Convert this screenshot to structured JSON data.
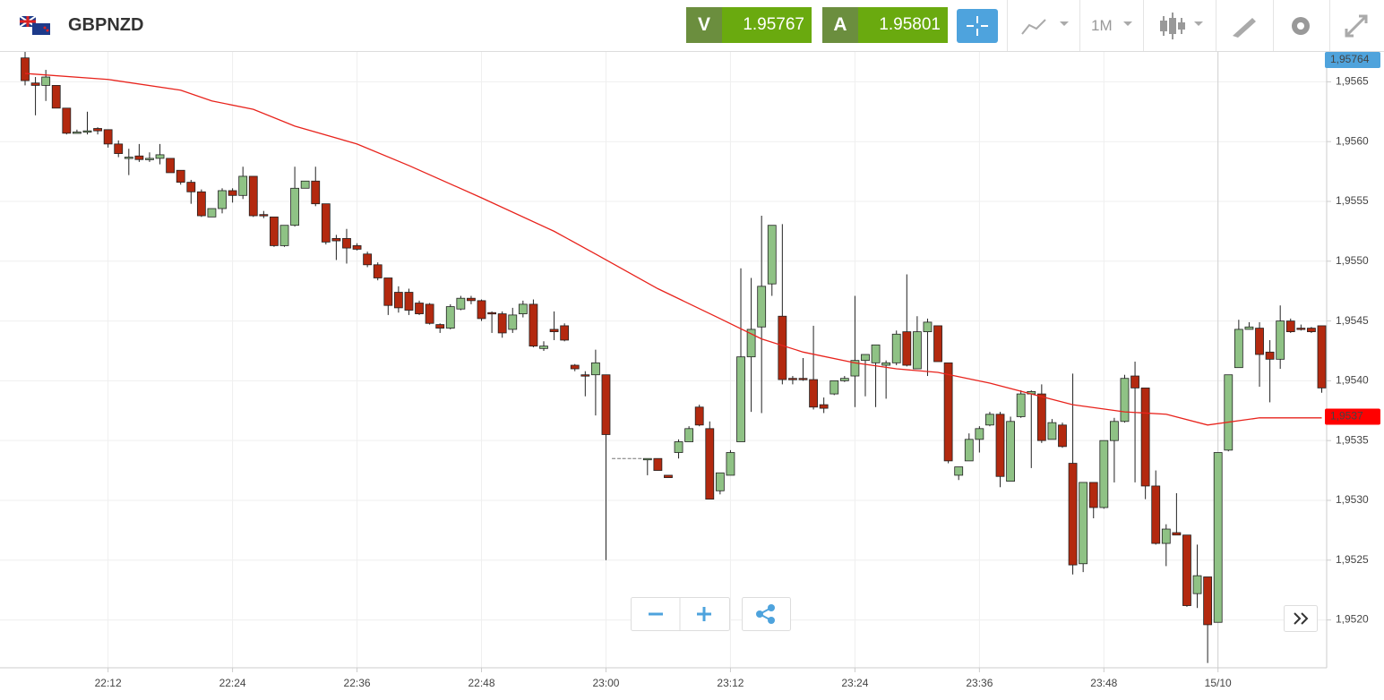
{
  "header": {
    "symbol": "GBPNZD",
    "sell": {
      "label": "V",
      "price": "1.95767"
    },
    "buy": {
      "label": "A",
      "price": "1.95801"
    },
    "timeframe": "1M"
  },
  "chart_data": {
    "type": "candlestick",
    "categories": [
      null,
      null,
      null,
      null,
      null,
      null,
      null,
      null,
      "22:12",
      null,
      null,
      null,
      null,
      null,
      null,
      null,
      null,
      null,
      null,
      null,
      "22:24",
      null,
      null,
      null,
      null,
      null,
      null,
      null,
      null,
      null,
      null,
      null,
      "22:36",
      null,
      null,
      null,
      null,
      null,
      null,
      null,
      null,
      null,
      null,
      null,
      "22:48",
      null,
      null,
      null,
      null,
      null,
      null,
      null,
      null,
      null,
      null,
      null,
      "23:00",
      null,
      null,
      null,
      null,
      null,
      null,
      null,
      null,
      null,
      null,
      null,
      "23:12",
      null,
      null,
      null,
      null,
      null,
      null,
      null,
      null,
      null,
      null,
      null,
      "23:24",
      null,
      null,
      null,
      null,
      null,
      null,
      null,
      null,
      null,
      null,
      null,
      "23:36",
      null,
      null,
      null,
      null,
      null,
      null,
      null,
      null,
      null,
      null,
      null,
      "23:48",
      null,
      null,
      null,
      null,
      null,
      null,
      null,
      null,
      null,
      null,
      "15/10",
      null,
      null,
      null,
      null,
      null,
      null,
      null,
      null,
      null,
      null
    ],
    "candles": [
      [
        1.9567,
        1.95675,
        1.95647,
        1.95651
      ],
      [
        1.95649,
        1.95654,
        1.95622,
        1.95647
      ],
      [
        1.95647,
        1.9566,
        1.95634,
        1.95654
      ],
      [
        1.95647,
        1.95647,
        1.95628,
        1.95628
      ],
      [
        1.95628,
        1.95628,
        1.95606,
        1.95607
      ],
      [
        1.95608,
        1.9561,
        1.95607,
        1.95608
      ],
      [
        1.95609,
        1.95625,
        1.95606,
        1.95609
      ],
      [
        1.95611,
        1.95612,
        1.95606,
        1.95609
      ],
      [
        1.9561,
        1.9561,
        1.95595,
        1.95598
      ],
      [
        1.95598,
        1.95601,
        1.95587,
        1.9559
      ],
      [
        1.95587,
        1.95594,
        1.95572,
        1.95587
      ],
      [
        1.95588,
        1.95598,
        1.95583,
        1.95585
      ],
      [
        1.95586,
        1.95591,
        1.95583,
        1.95586
      ],
      [
        1.95586,
        1.95598,
        1.95581,
        1.95589
      ],
      [
        1.95586,
        1.95586,
        1.95574,
        1.95574
      ],
      [
        1.95576,
        1.95576,
        1.95564,
        1.95566
      ],
      [
        1.95566,
        1.95568,
        1.95548,
        1.95558
      ],
      [
        1.95558,
        1.9556,
        1.95537,
        1.95538
      ],
      [
        1.95537,
        1.95544,
        1.95537,
        1.95544
      ],
      [
        1.95544,
        1.95561,
        1.9554,
        1.95559
      ],
      [
        1.95559,
        1.95561,
        1.95549,
        1.95555
      ],
      [
        1.95555,
        1.95579,
        1.95552,
        1.95571
      ],
      [
        1.95571,
        1.95571,
        1.95537,
        1.95538
      ],
      [
        1.95539,
        1.95542,
        1.95536,
        1.95538
      ],
      [
        1.95537,
        1.95537,
        1.95512,
        1.95513
      ],
      [
        1.95513,
        1.9553,
        1.95512,
        1.9553
      ],
      [
        1.9553,
        1.95579,
        1.95529,
        1.95561
      ],
      [
        1.95561,
        1.95567,
        1.95561,
        1.95567
      ],
      [
        1.95567,
        1.95579,
        1.95546,
        1.95548
      ],
      [
        1.95548,
        1.95548,
        1.95514,
        1.95516
      ],
      [
        1.95519,
        1.95522,
        1.95501,
        1.95517
      ],
      [
        1.95519,
        1.95527,
        1.95498,
        1.95511
      ],
      [
        1.95513,
        1.95515,
        1.95509,
        1.9551
      ],
      [
        1.95506,
        1.95508,
        1.95495,
        1.95497
      ],
      [
        1.95497,
        1.95499,
        1.95484,
        1.95486
      ],
      [
        1.95486,
        1.95486,
        1.95455,
        1.95463
      ],
      [
        1.95474,
        1.95479,
        1.95457,
        1.95461
      ],
      [
        1.95474,
        1.95477,
        1.95455,
        1.95459
      ],
      [
        1.95465,
        1.95467,
        1.95455,
        1.95456
      ],
      [
        1.95464,
        1.95465,
        1.95447,
        1.95448
      ],
      [
        1.95447,
        1.95448,
        1.9544,
        1.95444
      ],
      [
        1.95444,
        1.95464,
        1.95443,
        1.95462
      ],
      [
        1.9546,
        1.95471,
        1.95459,
        1.95469
      ],
      [
        1.95469,
        1.95471,
        1.95464,
        1.95467
      ],
      [
        1.95467,
        1.95468,
        1.9545,
        1.95452
      ],
      [
        1.95457,
        1.95458,
        1.9544,
        1.95456
      ],
      [
        1.95456,
        1.95458,
        1.95436,
        1.9544
      ],
      [
        1.95443,
        1.95461,
        1.9544,
        1.95455
      ],
      [
        1.95456,
        1.95467,
        1.95453,
        1.95464
      ],
      [
        1.95464,
        1.95468,
        1.95428,
        1.95429
      ],
      [
        1.95427,
        1.95433,
        1.95425,
        1.95429
      ],
      [
        1.95443,
        1.95458,
        1.95434,
        1.95441
      ],
      [
        1.95446,
        1.95448,
        1.95433,
        1.95434
      ],
      [
        1.95413,
        1.95414,
        1.95408,
        1.9541
      ],
      [
        1.95405,
        1.95408,
        1.95387,
        1.95404
      ],
      [
        1.95405,
        1.95426,
        1.95371,
        1.95415
      ],
      [
        1.95405,
        1.95405,
        1.9525,
        1.95355
      ],
      [
        1.95335,
        1.95335,
        1.95335,
        1.95335
      ],
      [
        1.95335,
        1.95335,
        1.95335,
        1.95335
      ],
      [
        1.95335,
        1.95335,
        1.95335,
        1.95335
      ],
      [
        1.95335,
        1.95335,
        1.95321,
        1.95335
      ],
      [
        1.95335,
        1.95335,
        1.95325,
        1.95325
      ],
      [
        1.95321,
        1.95321,
        1.95319,
        1.95319
      ],
      [
        1.9534,
        1.95351,
        1.95335,
        1.95349
      ],
      [
        1.95349,
        1.95362,
        1.95349,
        1.9536
      ],
      [
        1.95378,
        1.9538,
        1.95362,
        1.95363
      ],
      [
        1.9536,
        1.95366,
        1.95301,
        1.95301
      ],
      [
        1.95308,
        1.95323,
        1.95305,
        1.95323
      ],
      [
        1.95321,
        1.95342,
        1.95321,
        1.9534
      ],
      [
        1.95349,
        1.95494,
        1.95349,
        1.9542
      ],
      [
        1.9542,
        1.95486,
        1.95374,
        1.95443
      ],
      [
        1.95445,
        1.95538,
        1.95373,
        1.95479
      ],
      [
        1.95481,
        1.9553,
        1.95471,
        1.9553
      ],
      [
        1.95454,
        1.95531,
        1.95397,
        1.95401
      ],
      [
        1.95402,
        1.95404,
        1.95397,
        1.95401
      ],
      [
        1.95402,
        1.95419,
        1.954,
        1.95401
      ],
      [
        1.95401,
        1.95446,
        1.95376,
        1.95378
      ],
      [
        1.9538,
        1.95386,
        1.95373,
        1.95377
      ],
      [
        1.95389,
        1.954,
        1.95388,
        1.954
      ],
      [
        1.954,
        1.95404,
        1.95399,
        1.95402
      ],
      [
        1.95404,
        1.95471,
        1.95378,
        1.95417
      ],
      [
        1.95417,
        1.95422,
        1.95387,
        1.95422
      ],
      [
        1.95415,
        1.9543,
        1.95378,
        1.9543
      ],
      [
        1.95413,
        1.95417,
        1.95385,
        1.95415
      ],
      [
        1.95415,
        1.95442,
        1.95413,
        1.95439
      ],
      [
        1.95441,
        1.95489,
        1.95412,
        1.95413
      ],
      [
        1.9541,
        1.95454,
        1.9541,
        1.95441
      ],
      [
        1.95441,
        1.95452,
        1.95404,
        1.95449
      ],
      [
        1.95446,
        1.95446,
        1.95416,
        1.95416
      ],
      [
        1.95415,
        1.95415,
        1.95331,
        1.95333
      ],
      [
        1.95321,
        1.95328,
        1.95317,
        1.95328
      ],
      [
        1.95333,
        1.95356,
        1.95333,
        1.95351
      ],
      [
        1.95351,
        1.95362,
        1.9534,
        1.9536
      ],
      [
        1.95363,
        1.95374,
        1.95362,
        1.95372
      ],
      [
        1.95372,
        1.95374,
        1.95311,
        1.9532
      ],
      [
        1.95316,
        1.9537,
        1.95316,
        1.95366
      ],
      [
        1.9537,
        1.95392,
        1.95369,
        1.95389
      ],
      [
        1.95389,
        1.95392,
        1.95327,
        1.95391
      ],
      [
        1.95389,
        1.95397,
        1.95348,
        1.9535
      ],
      [
        1.95351,
        1.95368,
        1.95351,
        1.95365
      ],
      [
        1.95363,
        1.95365,
        1.95344,
        1.95345
      ],
      [
        1.95331,
        1.95406,
        1.95238,
        1.95246
      ],
      [
        1.95247,
        1.95315,
        1.9524,
        1.95315
      ],
      [
        1.95315,
        1.95315,
        1.95285,
        1.95294
      ],
      [
        1.95294,
        1.9535,
        1.95293,
        1.9535
      ],
      [
        1.9535,
        1.95369,
        1.95315,
        1.95366
      ],
      [
        1.95366,
        1.95405,
        1.95365,
        1.95402
      ],
      [
        1.95404,
        1.95416,
        1.95315,
        1.95394
      ],
      [
        1.95394,
        1.95394,
        1.95301,
        1.95312
      ],
      [
        1.95312,
        1.95325,
        1.95263,
        1.95264
      ],
      [
        1.95264,
        1.9528,
        1.95245,
        1.95276
      ],
      [
        1.95273,
        1.95306,
        1.95271,
        1.95271
      ],
      [
        1.95271,
        1.95271,
        1.95211,
        1.95212
      ],
      [
        1.95222,
        1.95263,
        1.9521,
        1.95237
      ],
      [
        1.95236,
        1.95236,
        1.95164,
        1.95196
      ],
      [
        1.95198,
        1.9534,
        1.95198,
        1.9534
      ],
      [
        1.95342,
        1.95405,
        1.95341,
        1.95405
      ],
      [
        1.95411,
        1.95451,
        1.95411,
        1.95443
      ],
      [
        1.95443,
        1.95449,
        1.95443,
        1.95445
      ],
      [
        1.95444,
        1.95449,
        1.95395,
        1.95422
      ],
      [
        1.95424,
        1.95434,
        1.95382,
        1.95418
      ],
      [
        1.95418,
        1.95463,
        1.9541,
        1.9545
      ],
      [
        1.9545,
        1.95452,
        1.9544,
        1.95441
      ],
      [
        1.95444,
        1.95447,
        1.95442,
        1.95443
      ],
      [
        1.95444,
        1.95445,
        1.9544,
        1.95441
      ],
      [
        1.95446,
        1.95446,
        1.9539,
        1.95394
      ]
    ],
    "up_color": "#8fc285",
    "down_color": "#b3290f",
    "ma": {
      "color": "#e8231c",
      "index": [
        0,
        8,
        15,
        18,
        22,
        26,
        32,
        37,
        44,
        51,
        55,
        61,
        67,
        71,
        75,
        80,
        84,
        88,
        93,
        97,
        101,
        106,
        110,
        114,
        119,
        125
      ],
      "values": [
        1.95657,
        1.95652,
        1.95643,
        1.95634,
        1.95627,
        1.95613,
        1.95598,
        1.9558,
        1.95553,
        1.95525,
        1.95506,
        1.95477,
        1.95452,
        1.95435,
        1.95424,
        1.95415,
        1.9541,
        1.95407,
        1.95398,
        1.95389,
        1.9538,
        1.95374,
        1.95372,
        1.95363,
        1.95369,
        1.95369
      ]
    },
    "ylim": [
      1.9516,
      1.95675
    ],
    "yticks": [
      {
        "value": 1.952,
        "label": "1,9520"
      },
      {
        "value": 1.9525,
        "label": "1,9525"
      },
      {
        "value": 1.953,
        "label": "1,9530"
      },
      {
        "value": 1.9535,
        "label": "1,9535"
      },
      {
        "value": 1.954,
        "label": "1,9540"
      },
      {
        "value": 1.9545,
        "label": "1,9545"
      },
      {
        "value": 1.955,
        "label": "1,9550"
      },
      {
        "value": 1.9555,
        "label": "1,9555"
      },
      {
        "value": 1.956,
        "label": "1,9560"
      },
      {
        "value": 1.9565,
        "label": "1,9565"
      }
    ],
    "grid": true,
    "price_labels": [
      {
        "value": 1.95764,
        "label": "1,95764",
        "color": "#4fa3dc"
      },
      {
        "value": 1.9537,
        "label": "1,9537",
        "color": "#ff0000"
      }
    ]
  }
}
